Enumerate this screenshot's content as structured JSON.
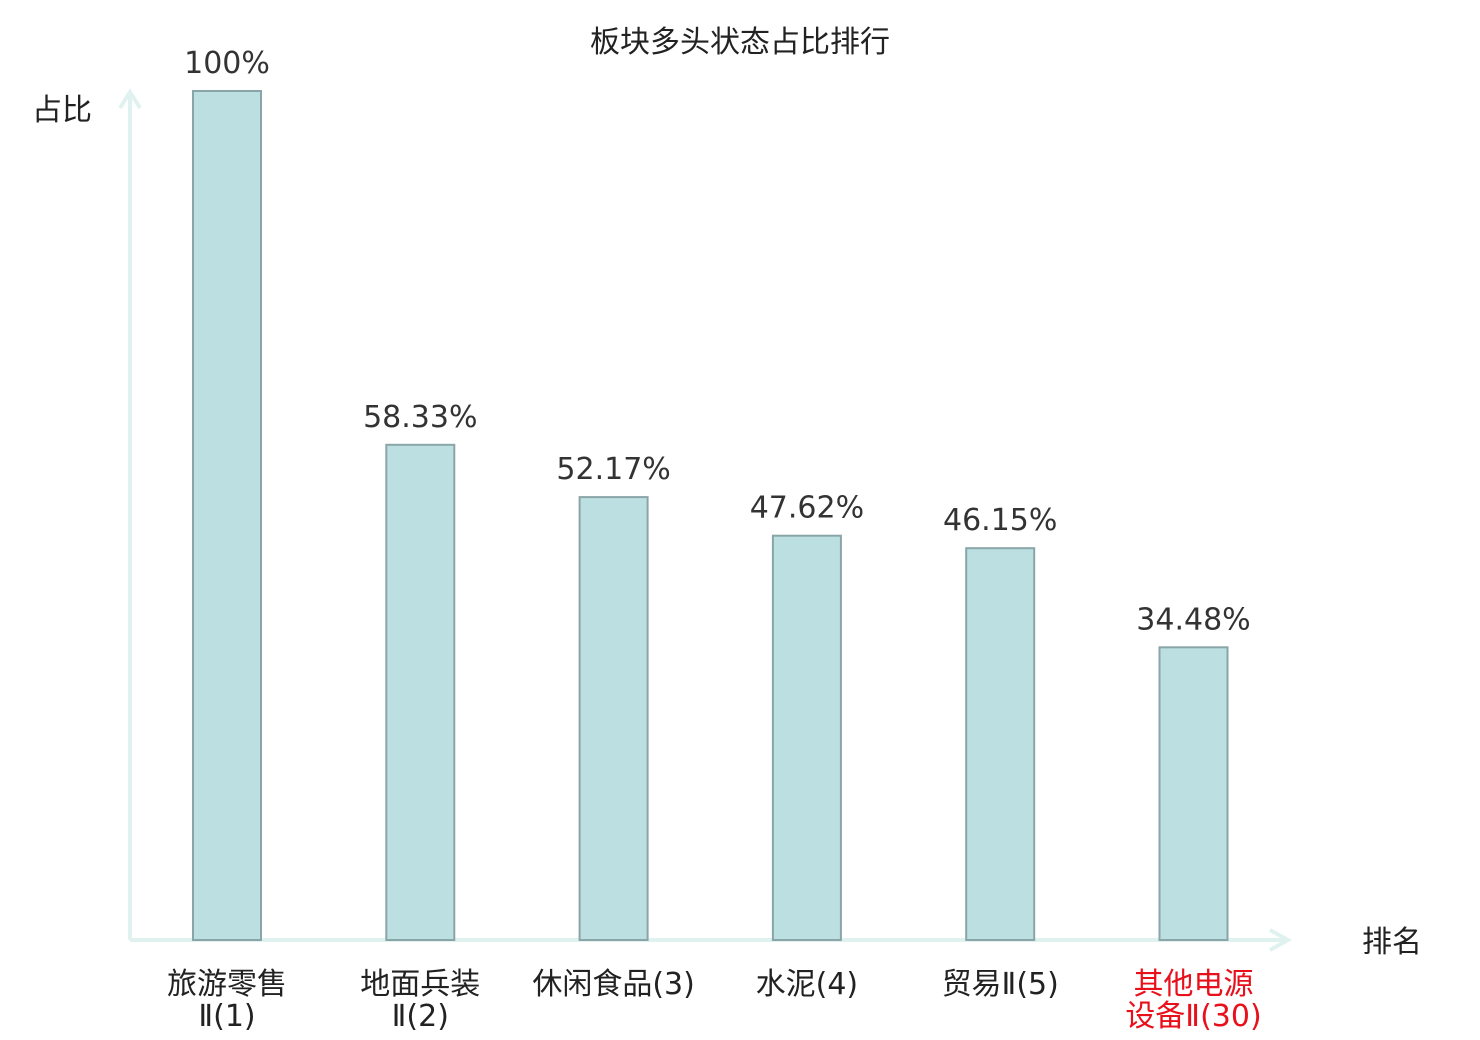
{
  "chart_data": {
    "type": "bar",
    "title": "板块多头状态占比排行",
    "ylabel": "占比",
    "xlabel": "排名",
    "ylim": [
      0,
      100
    ],
    "grid": false,
    "categories": [
      [
        "旅游零售",
        "Ⅱ(1)"
      ],
      [
        "地面兵装",
        "Ⅱ(2)"
      ],
      [
        "休闲食品(3)"
      ],
      [
        "水泥(4)"
      ],
      [
        "贸易Ⅱ(5)"
      ],
      [
        "其他电源",
        "设备Ⅱ(30)"
      ]
    ],
    "values": [
      100,
      58.33,
      52.17,
      47.62,
      46.15,
      34.48
    ],
    "value_labels": [
      "100%",
      "58.33%",
      "52.17%",
      "47.62%",
      "46.15%",
      "34.48%"
    ],
    "highlight_index": 5
  },
  "colors": {
    "bar_fill": "#bce0e2",
    "bar_stroke": "#8aa5a8",
    "axis": "#e0f2f0",
    "text": "#222222",
    "value_text": "#333333",
    "highlight_text": "#e8101a"
  }
}
